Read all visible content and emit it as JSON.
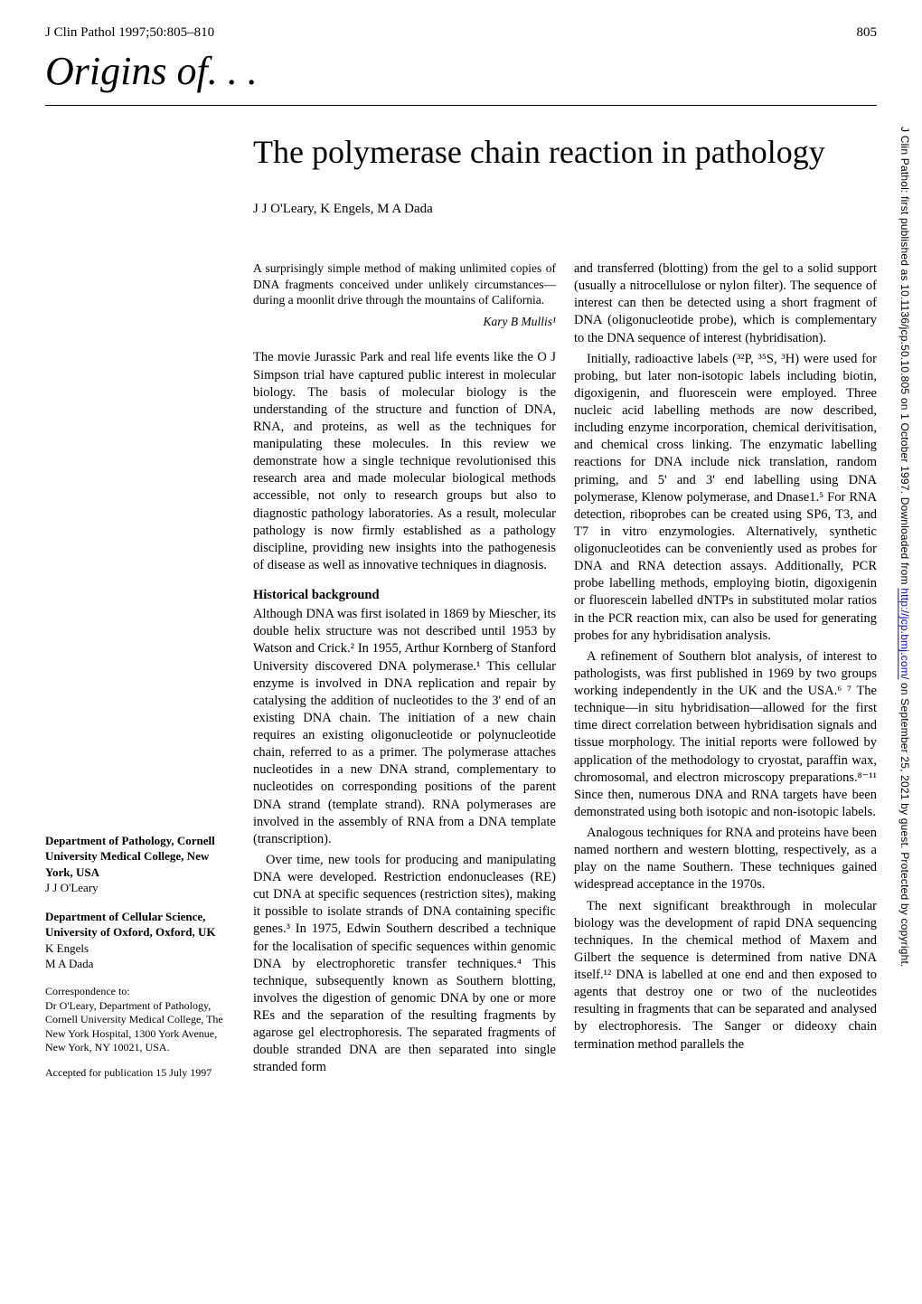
{
  "header": {
    "journal_ref": "J Clin Pathol 1997;50:805–810",
    "page_number": "805"
  },
  "series_title": "Origins of. . .",
  "article_title": "The polymerase chain reaction in pathology",
  "authors": "J J O'Leary, K Engels, M A Dada",
  "abstract": {
    "text": "A surprisingly simple method of making unlimited copies of DNA fragments conceived under unlikely circumstances—during a moonlit drive through the mountains of California.",
    "attribution": "Kary B Mullis¹"
  },
  "column1": {
    "intro": "The movie Jurassic Park and real life events like the O J Simpson trial have captured public interest in molecular biology. The basis of molecular biology is the understanding of the structure and function of DNA, RNA, and proteins, as well as the techniques for manipulating these molecules. In this review we demonstrate how a single technique revolutionised this research area and made molecular biological methods accessible, not only to research groups but also to diagnostic pathology laboratories. As a result, molecular pathology is now firmly established as a pathology discipline, providing new insights into the pathogenesis of disease as well as innovative techniques in diagnosis.",
    "heading1": "Historical background",
    "hist1": "Although DNA was first isolated in 1869 by Miescher, its double helix structure was not described until 1953 by Watson and Crick.² In 1955, Arthur Kornberg of Stanford University discovered DNA polymerase.¹ This cellular enzyme is involved in DNA replication and repair by catalysing the addition of nucleotides to the 3' end of an existing DNA chain. The initiation of a new chain requires an existing oligonucleotide or polynucleotide chain, referred to as a primer. The polymerase attaches nucleotides in a new DNA strand, complementary to nucleotides on corresponding positions of the parent DNA strand (template strand). RNA polymerases are involved in the assembly of RNA from a DNA template (transcription).",
    "hist2": "Over time, new tools for producing and manipulating DNA were developed. Restriction endonucleases (RE) cut DNA at specific sequences (restriction sites), making it possible to isolate strands of DNA containing specific genes.³ In 1975, Edwin Southern described a technique for the localisation of specific sequences within genomic DNA by electrophoretic transfer techniques.⁴ This technique, subsequently known as Southern blotting, involves the digestion of genomic DNA by one or more REs and the separation of the resulting fragments by agarose gel electrophoresis. The separated fragments of double stranded DNA are then separated into single stranded form"
  },
  "column2": {
    "p1": "and transferred (blotting) from the gel to a solid support (usually a nitrocellulose or nylon filter). The sequence of interest can then be detected using a short fragment of DNA (oligonucleotide probe), which is complementary to the DNA sequence of interest (hybridisation).",
    "p2": "Initially, radioactive labels (³²P, ³⁵S, ³H) were used for probing, but later non-isotopic labels including biotin, digoxigenin, and fluorescein were employed. Three nucleic acid labelling methods are now described, including enzyme incorporation, chemical derivitisation, and chemical cross linking. The enzymatic labelling reactions for DNA include nick translation, random priming, and 5' and 3' end labelling using DNA polymerase, Klenow polymerase, and Dnase1.⁵ For RNA detection, riboprobes can be created using SP6, T3, and T7 in vitro enzymologies. Alternatively, synthetic oligonucleotides can be conveniently used as probes for DNA and RNA detection assays. Additionally, PCR probe labelling methods, employing biotin, digoxigenin or fluorescein labelled dNTPs in substituted molar ratios in the PCR reaction mix, can also be used for generating probes for any hybridisation analysis.",
    "p3": "A refinement of Southern blot analysis, of interest to pathologists, was first published in 1969 by two groups working independently in the UK and the USA.⁶ ⁷ The technique—in situ hybridisation—allowed for the first time direct correlation between hybridisation signals and tissue morphology. The initial reports were followed by application of the methodology to cryostat, paraffin wax, chromosomal, and electron microscopy preparations.⁸⁻¹¹ Since then, numerous DNA and RNA targets have been demonstrated using both isotopic and non-isotopic labels.",
    "p4": "Analogous techniques for RNA and proteins have been named northern and western blotting, respectively, as a play on the name Southern. These techniques gained widespread acceptance in the 1970s.",
    "p5": "The next significant breakthrough in molecular biology was the development of rapid DNA sequencing techniques. In the chemical method of Maxem and Gilbert the sequence is determined from native DNA itself.¹² DNA is labelled at one end and then exposed to agents that destroy one or two of the nucleotides resulting in fragments that can be separated and analysed by electrophoresis. The Sanger or dideoxy chain termination method parallels the"
  },
  "affiliations": {
    "dept1_bold": "Department of Pathology, Cornell University Medical College, New York, USA",
    "dept1_name": "J J O'Leary",
    "dept2_bold": "Department of Cellular Science, University of Oxford, Oxford, UK",
    "dept2_name1": "K Engels",
    "dept2_name2": "M A Dada",
    "correspondence_label": "Correspondence to:",
    "correspondence_body": "Dr O'Leary, Department of Pathology, Cornell University Medical College, The New York Hospital, 1300 York Avenue, New York, NY 10021, USA.",
    "accepted": "Accepted for publication 15 July 1997"
  },
  "sidebar": {
    "prefix": "J Clin Pathol: first published as 10.1136/jcp.50.10.805 on 1 October 1997. Downloaded from ",
    "link": "http://jcp.bmj.com/",
    "suffix": " on September 25, 2021 by guest. Protected by copyright."
  }
}
